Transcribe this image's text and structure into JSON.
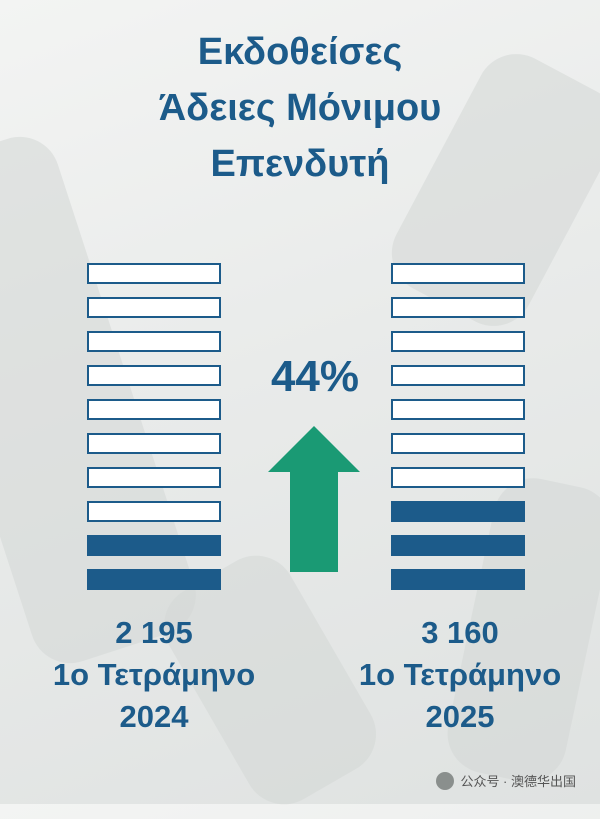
{
  "title_lines": [
    "Εκδοθείσες",
    "Άδειες Μόνιμου",
    "Επενδυτή"
  ],
  "chart_data": {
    "type": "pictogram",
    "title": "Εκδοθείσες Άδειες Μόνιμου Επενδυτή",
    "blocks_per_column": 10,
    "series": [
      {
        "value_label": "2 195",
        "period_line": "1ο Τετράμηνο",
        "year": "2024",
        "value": 2195,
        "filled_blocks": 2
      },
      {
        "value_label": "3 160",
        "period_line": "1ο Τετράμηνο",
        "year": "2025",
        "value": 3160,
        "filled_blocks": 3
      }
    ],
    "change_label": "44%",
    "change_direction": "up"
  },
  "colors": {
    "primary": "#1c5b8a",
    "arrow": "#1a9a74"
  },
  "watermark": {
    "text": "公众号 · 澳德华出国",
    "icon": "wechat-icon"
  }
}
